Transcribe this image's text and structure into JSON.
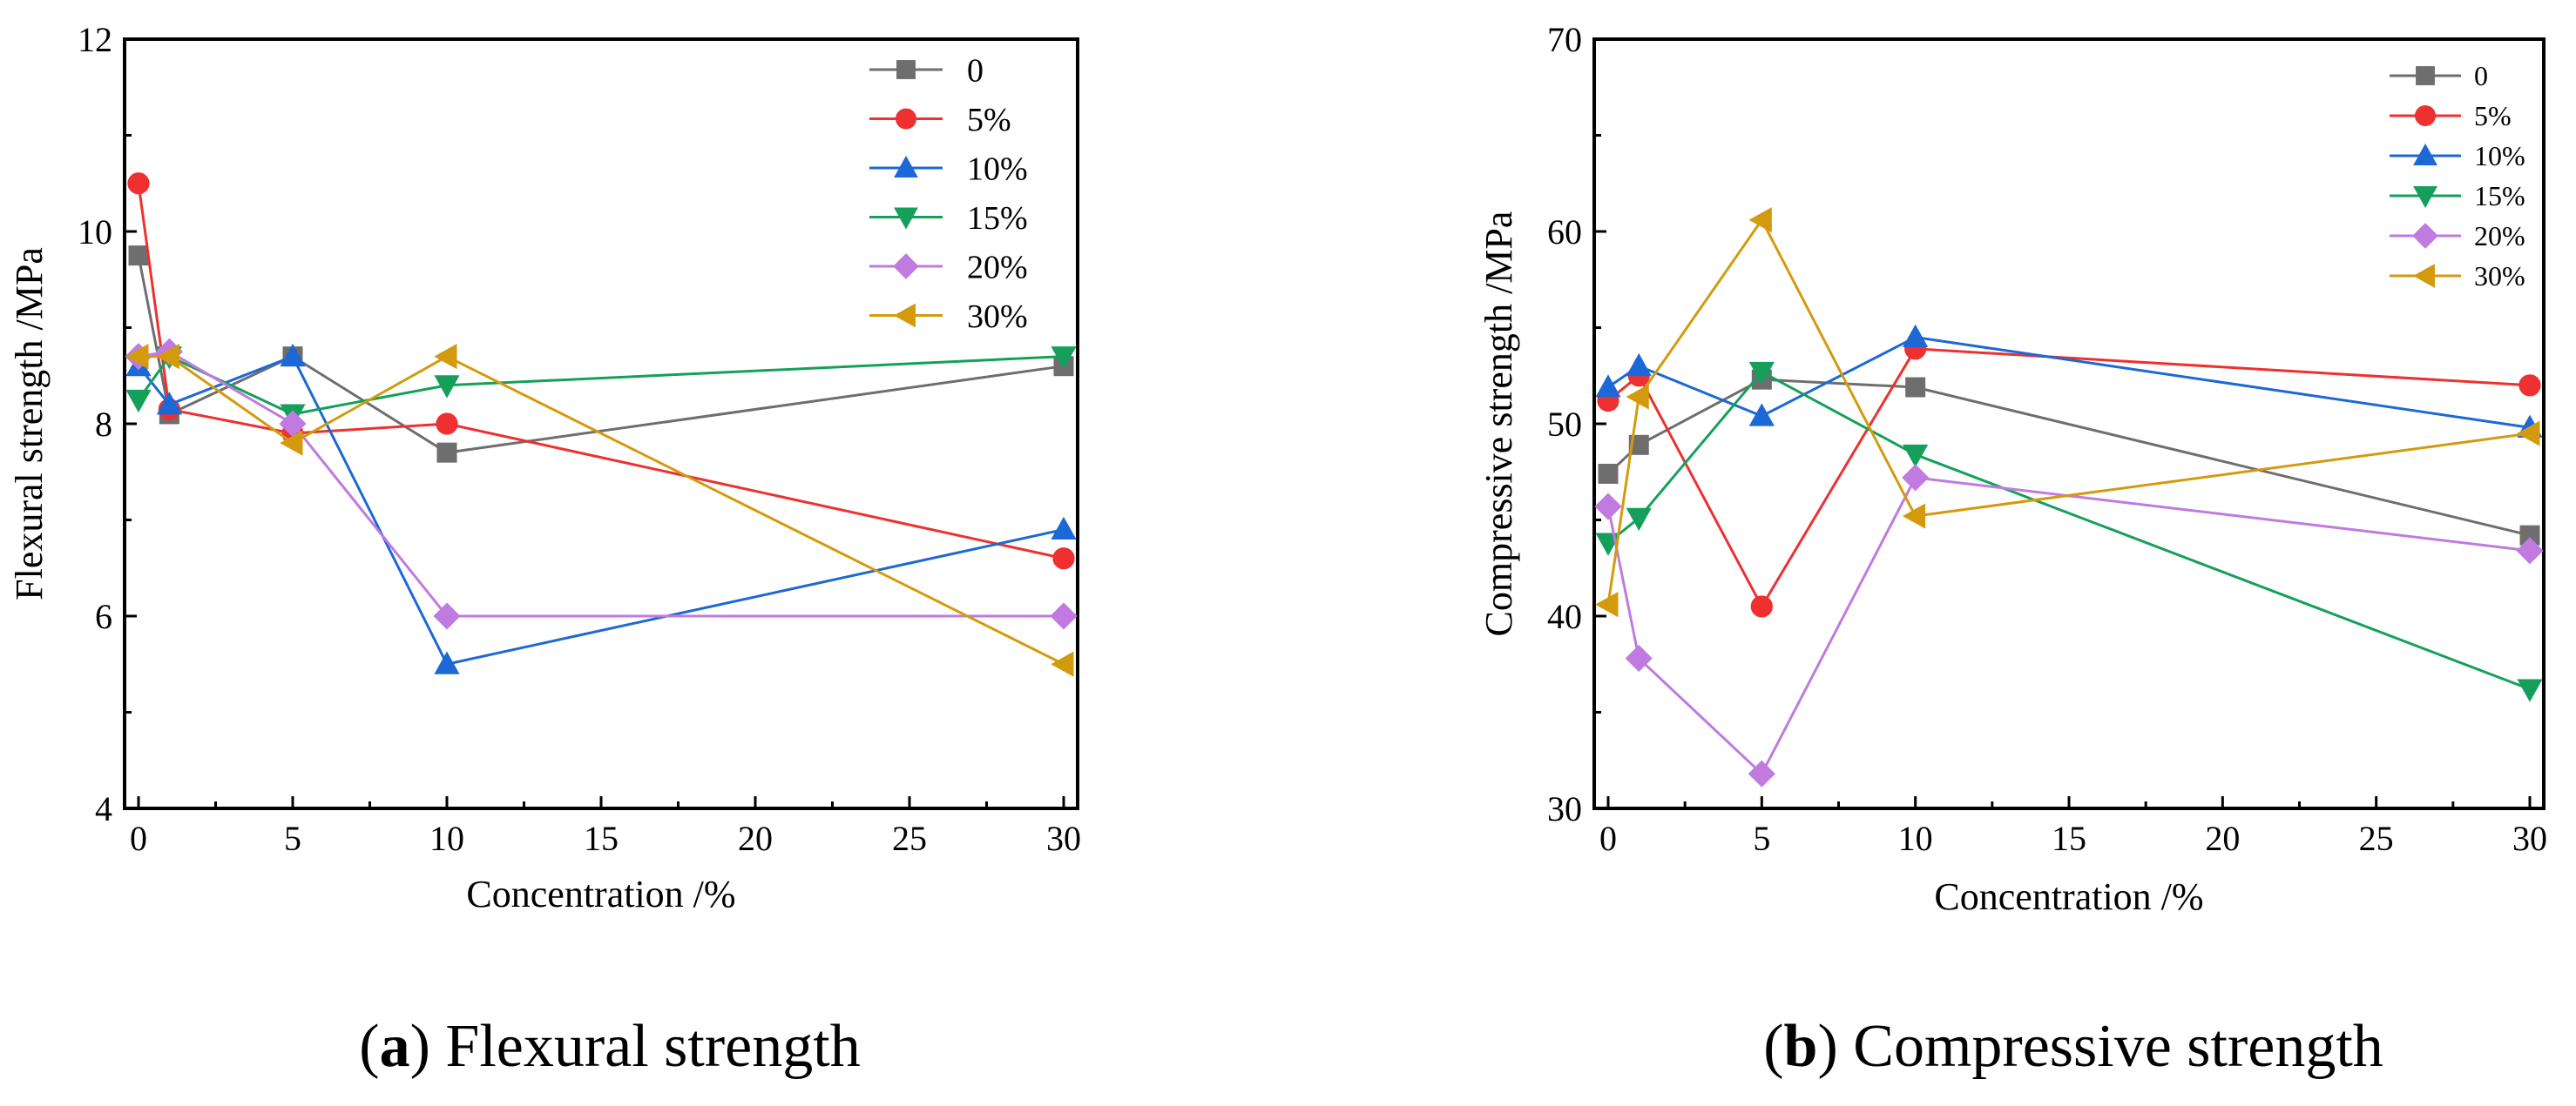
{
  "chart_data": [
    {
      "type": "line",
      "id": "a",
      "x": [
        0,
        1,
        5,
        10,
        30
      ],
      "xlim": [
        0,
        30
      ],
      "xticks": [
        0,
        5,
        10,
        15,
        20,
        25,
        30
      ],
      "ylim": [
        4,
        12
      ],
      "yticks": [
        4,
        6,
        8,
        10,
        12
      ],
      "xlabel": "Concentration /%",
      "ylabel": "Flexural strength /MPa",
      "grid": false,
      "legend_position": "top-right",
      "caption": {
        "letter": "a",
        "open": "(",
        "close": ")",
        "text": " Flexural strength"
      },
      "series": [
        {
          "name": "0",
          "values": [
            9.75,
            8.1,
            8.7,
            7.7,
            8.6
          ]
        },
        {
          "name": "5%",
          "values": [
            10.5,
            8.15,
            7.9,
            8.0,
            6.6
          ]
        },
        {
          "name": "10%",
          "values": [
            8.6,
            8.2,
            8.7,
            5.5,
            6.9
          ]
        },
        {
          "name": "15%",
          "values": [
            8.25,
            8.7,
            8.1,
            8.4,
            8.7
          ]
        },
        {
          "name": "20%",
          "values": [
            8.7,
            8.75,
            8.0,
            6.0,
            6.0
          ]
        },
        {
          "name": "30%",
          "values": [
            8.7,
            8.7,
            7.8,
            8.7,
            5.5
          ]
        }
      ]
    },
    {
      "type": "line",
      "id": "b",
      "x": [
        0,
        1,
        5,
        10,
        30
      ],
      "xlim": [
        0,
        30
      ],
      "xticks": [
        0,
        5,
        10,
        15,
        20,
        25,
        30
      ],
      "ylim": [
        30,
        70
      ],
      "yticks": [
        30,
        40,
        50,
        60,
        70
      ],
      "xlabel": "Concentration /%",
      "ylabel": "Compressive strength /MPa",
      "grid": false,
      "legend_position": "top-right",
      "caption": {
        "letter": "b",
        "open": "(",
        "close": ")",
        "text": " Compressive strength"
      },
      "series": [
        {
          "name": "0",
          "values": [
            47.4,
            48.9,
            52.3,
            51.9,
            44.2
          ]
        },
        {
          "name": "5%",
          "values": [
            51.2,
            52.5,
            40.5,
            53.9,
            52.0
          ]
        },
        {
          "name": "10%",
          "values": [
            51.9,
            53.0,
            50.4,
            54.5,
            49.8
          ]
        },
        {
          "name": "15%",
          "values": [
            43.8,
            45.1,
            52.7,
            48.4,
            36.2
          ]
        },
        {
          "name": "20%",
          "values": [
            45.7,
            37.8,
            31.8,
            47.2,
            43.4
          ]
        },
        {
          "name": "30%",
          "values": [
            40.6,
            51.4,
            60.6,
            45.2,
            49.5
          ]
        }
      ]
    }
  ],
  "style": {
    "series_colors": [
      "#6e6e6e",
      "#ee3030",
      "#1c68d6",
      "#14a05a",
      "#c07ae0",
      "#d49a0e"
    ],
    "series_markers": [
      "square",
      "circle",
      "triangle-up",
      "triangle-down",
      "diamond",
      "triangle-left"
    ],
    "axis_color": "#000000"
  }
}
